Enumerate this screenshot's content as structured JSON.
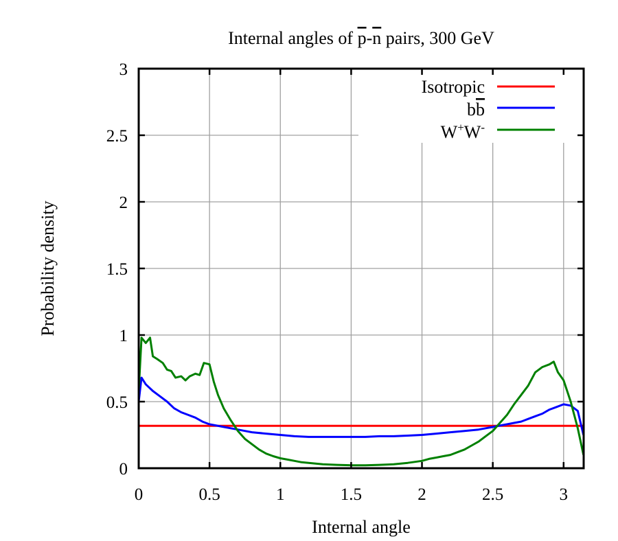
{
  "chart_data": {
    "type": "line",
    "title_parts": [
      "Internal angles of ",
      "p",
      "-",
      "n",
      " pairs, 300 GeV"
    ],
    "title_overlined": [
      false,
      true,
      false,
      true,
      false
    ],
    "xlabel": "Internal angle",
    "ylabel": "Probability density",
    "xlim": [
      0,
      3.1416
    ],
    "ylim": [
      0,
      3
    ],
    "xticks": [
      0,
      0.5,
      1,
      1.5,
      2,
      2.5,
      3
    ],
    "xtick_labels": [
      "0",
      "0.5",
      "1",
      "1.5",
      "2",
      "2.5",
      "3"
    ],
    "yticks": [
      0,
      0.5,
      1,
      1.5,
      2,
      2.5,
      3
    ],
    "ytick_labels": [
      "0",
      "0.5",
      "1",
      "1.5",
      "2",
      "2.5",
      "3"
    ],
    "grid": true,
    "legend_position": "top-right",
    "legend": {
      "isotropic": "Isotropic",
      "bb_main": "b",
      "bb_bar": "b",
      "ww_w1": "W",
      "ww_sup1": "+",
      "ww_w2": "W",
      "ww_sup2": "-"
    },
    "series": [
      {
        "name": "Isotropic",
        "color": "#ff0000",
        "x": [
          0,
          3.1416
        ],
        "y": [
          0.318,
          0.318
        ]
      },
      {
        "name": "bb",
        "color": "#0000ff",
        "x": [
          0,
          0.02,
          0.05,
          0.1,
          0.15,
          0.2,
          0.25,
          0.3,
          0.35,
          0.4,
          0.45,
          0.5,
          0.55,
          0.6,
          0.65,
          0.7,
          0.75,
          0.8,
          0.9,
          1.0,
          1.1,
          1.2,
          1.3,
          1.4,
          1.5,
          1.6,
          1.7,
          1.8,
          1.9,
          2.0,
          2.1,
          2.2,
          2.3,
          2.4,
          2.45,
          2.5,
          2.55,
          2.6,
          2.65,
          2.7,
          2.75,
          2.8,
          2.85,
          2.9,
          2.95,
          3.0,
          3.05,
          3.1,
          3.14
        ],
        "y": [
          0.5,
          0.68,
          0.63,
          0.58,
          0.54,
          0.5,
          0.45,
          0.42,
          0.4,
          0.38,
          0.35,
          0.33,
          0.32,
          0.31,
          0.3,
          0.29,
          0.28,
          0.27,
          0.26,
          0.25,
          0.24,
          0.235,
          0.235,
          0.235,
          0.235,
          0.235,
          0.24,
          0.24,
          0.245,
          0.25,
          0.26,
          0.27,
          0.28,
          0.29,
          0.3,
          0.31,
          0.32,
          0.33,
          0.34,
          0.35,
          0.37,
          0.39,
          0.41,
          0.44,
          0.46,
          0.48,
          0.47,
          0.43,
          0.25
        ]
      },
      {
        "name": "W+W-",
        "color": "#008000",
        "x": [
          0,
          0.02,
          0.05,
          0.08,
          0.1,
          0.13,
          0.17,
          0.2,
          0.23,
          0.26,
          0.3,
          0.33,
          0.36,
          0.4,
          0.43,
          0.46,
          0.5,
          0.53,
          0.56,
          0.6,
          0.65,
          0.7,
          0.75,
          0.8,
          0.85,
          0.9,
          0.95,
          1.0,
          1.05,
          1.1,
          1.15,
          1.2,
          1.3,
          1.4,
          1.5,
          1.6,
          1.7,
          1.8,
          1.9,
          2.0,
          2.05,
          2.1,
          2.15,
          2.2,
          2.25,
          2.3,
          2.35,
          2.4,
          2.45,
          2.5,
          2.55,
          2.6,
          2.65,
          2.7,
          2.75,
          2.8,
          2.85,
          2.9,
          2.93,
          2.96,
          3.0,
          3.05,
          3.1,
          3.14
        ],
        "y": [
          0.58,
          0.98,
          0.94,
          0.98,
          0.84,
          0.82,
          0.79,
          0.74,
          0.73,
          0.68,
          0.69,
          0.66,
          0.69,
          0.71,
          0.7,
          0.79,
          0.78,
          0.65,
          0.55,
          0.45,
          0.36,
          0.28,
          0.22,
          0.18,
          0.14,
          0.11,
          0.09,
          0.075,
          0.065,
          0.055,
          0.045,
          0.04,
          0.03,
          0.025,
          0.022,
          0.022,
          0.025,
          0.03,
          0.04,
          0.055,
          0.07,
          0.08,
          0.09,
          0.1,
          0.12,
          0.14,
          0.17,
          0.2,
          0.24,
          0.28,
          0.34,
          0.4,
          0.48,
          0.55,
          0.62,
          0.72,
          0.76,
          0.78,
          0.8,
          0.72,
          0.66,
          0.5,
          0.3,
          0.1
        ]
      }
    ]
  }
}
